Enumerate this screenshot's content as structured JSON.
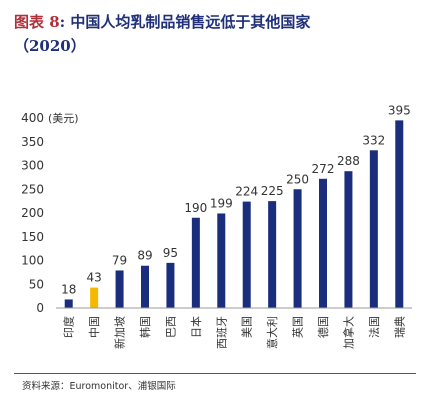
{
  "title": {
    "fig_label": "图表 8",
    "line1": ": 中国人均乳制品销售远低于其他国家",
    "line2": "（2020）"
  },
  "source": "资料来源：Euromonitor、浦银国际",
  "colors": {
    "bar": "#1a2e7d",
    "highlight": "#f5b800",
    "axis": "#999999",
    "title": "#1f2f7a",
    "accent": "#b0303a"
  },
  "chart_data": {
    "type": "bar",
    "ylabel": "(美元)",
    "ylim": [
      0,
      400
    ],
    "yticks": [
      0,
      50,
      100,
      150,
      200,
      250,
      300,
      350,
      400
    ],
    "grid": false,
    "categories": [
      "印度",
      "中国",
      "新加坡",
      "韩国",
      "巴西",
      "日本",
      "西班牙",
      "美国",
      "意大利",
      "英国",
      "德国",
      "加拿大",
      "法国",
      "瑞典"
    ],
    "values": [
      18,
      43,
      79,
      89,
      95,
      190,
      199,
      224,
      225,
      250,
      272,
      288,
      332,
      395
    ],
    "highlight_category": "中国"
  }
}
